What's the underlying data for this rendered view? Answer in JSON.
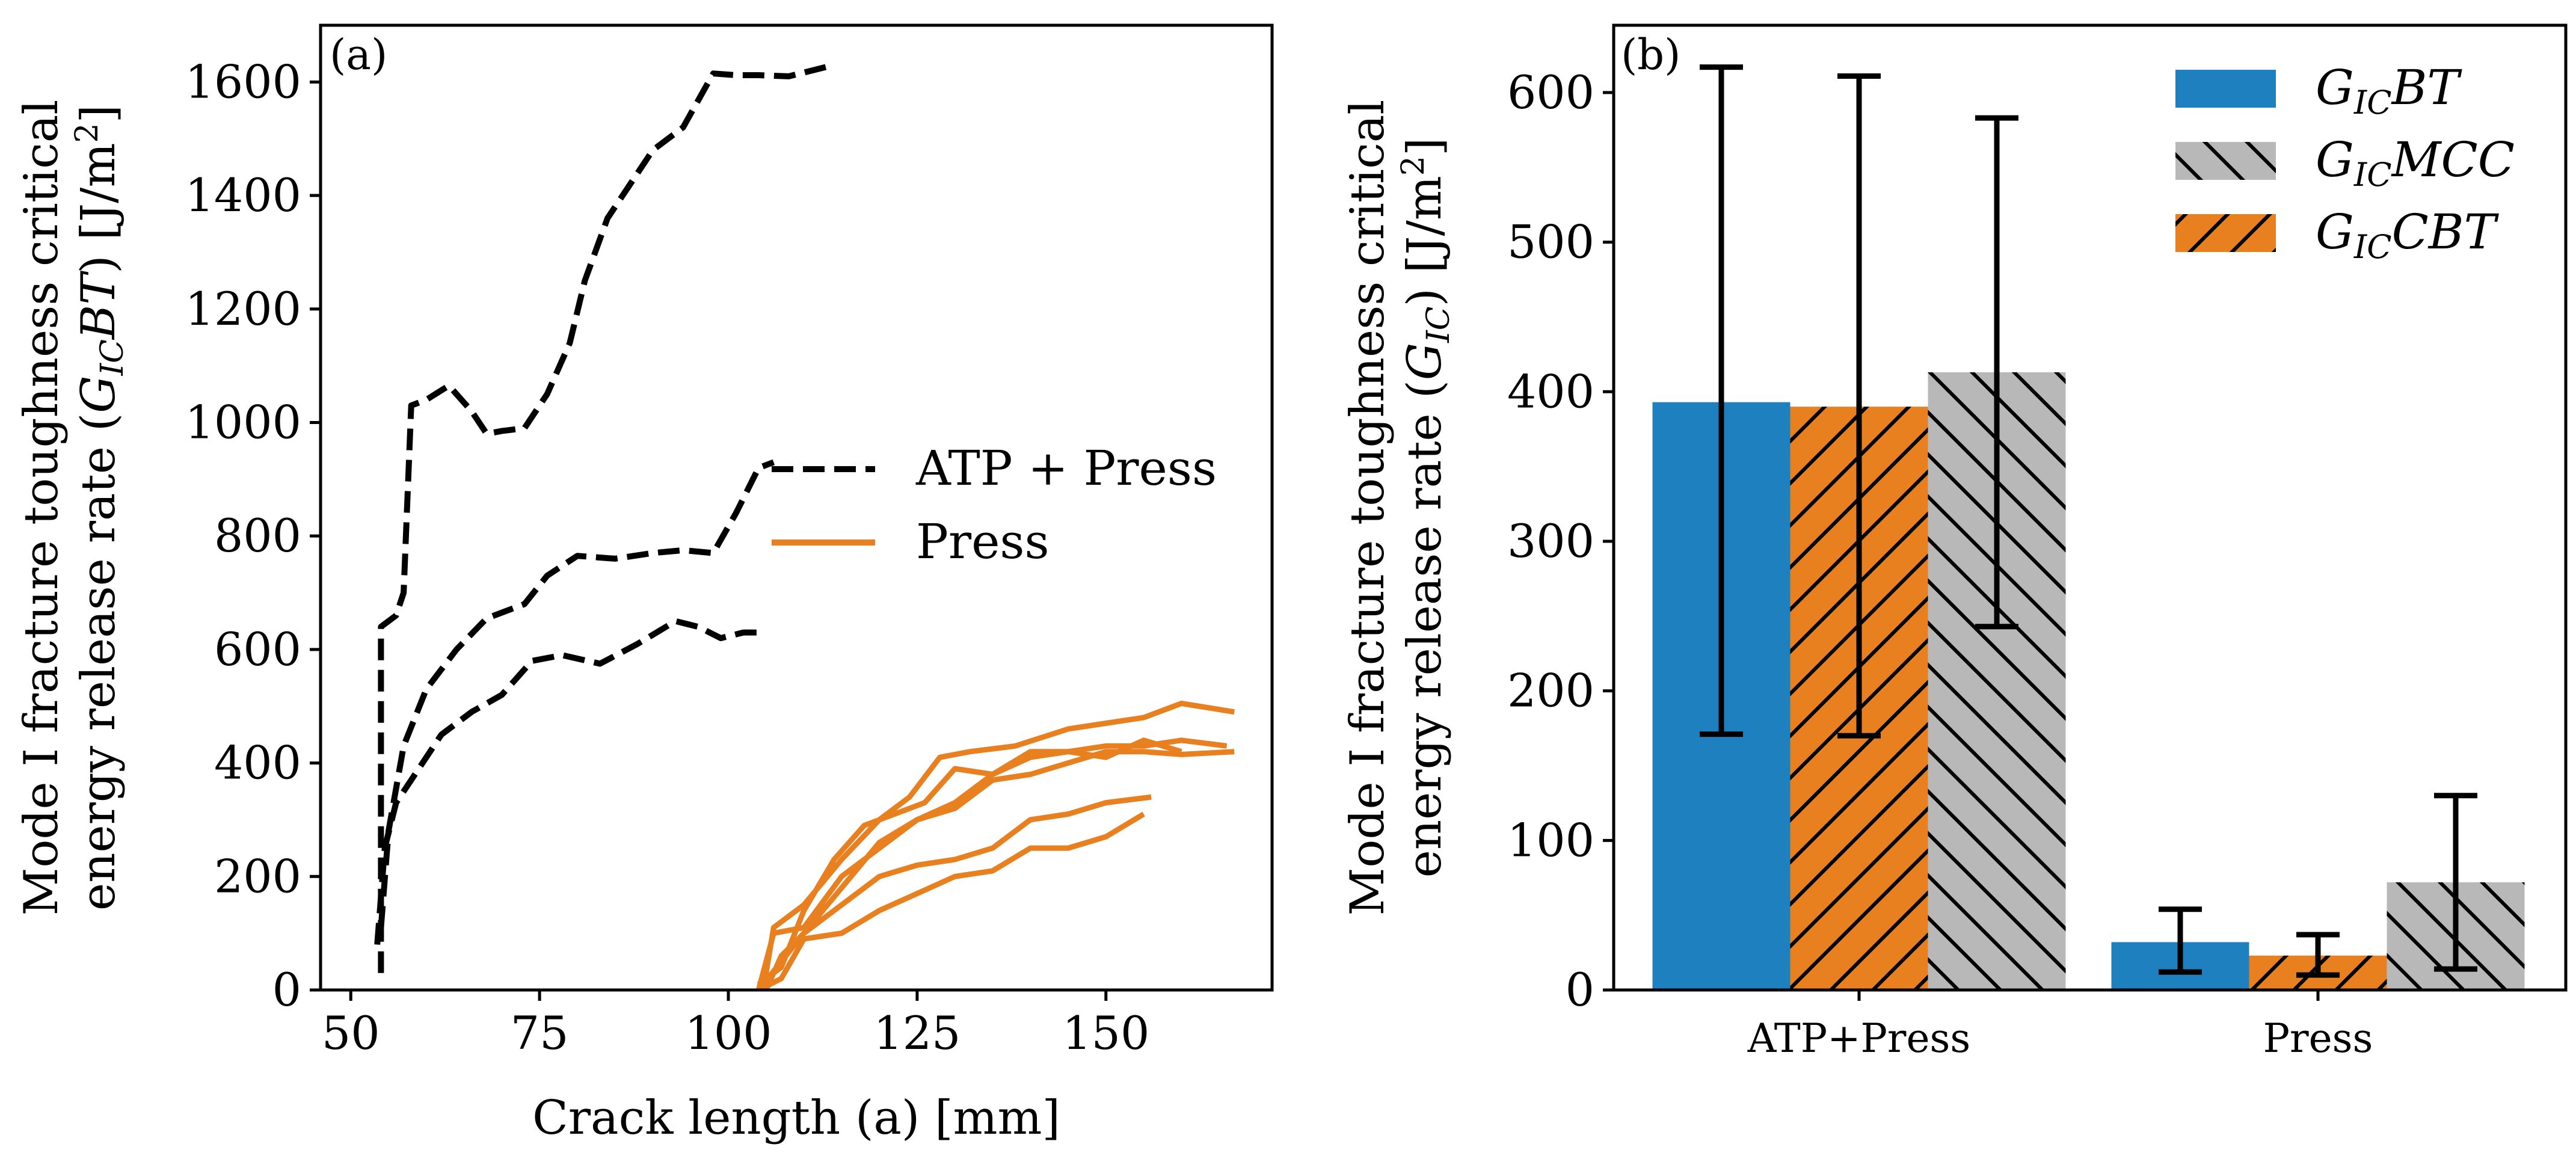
{
  "chart_data": [
    {
      "type": "line",
      "panel_label": "(a)",
      "xlabel": "Crack length (a) [mm]",
      "ylabel_line1": "Mode I fracture toughness critical",
      "ylabel_line2_prefix": "energy release rate (",
      "ylabel_symbol": "G",
      "ylabel_sub": "IC",
      "ylabel_symbol_tail": "BT",
      "ylabel_unit_prefix": ") [J/m",
      "ylabel_unit_sup": "2",
      "ylabel_unit_suffix": "]",
      "xlim": [
        46,
        172
      ],
      "ylim": [
        0,
        1700
      ],
      "xticks": [
        50,
        75,
        100,
        125,
        150
      ],
      "yticks": [
        0,
        200,
        400,
        600,
        800,
        1000,
        1200,
        1400,
        1600
      ],
      "legend_position": "center-right",
      "legend": [
        {
          "label": "ATP + Press",
          "color": "#000000",
          "dash": true
        },
        {
          "label": "Press",
          "color": "#E8801F",
          "dash": false
        }
      ],
      "series": [
        {
          "name": "ATP + Press",
          "color": "#000000",
          "dash": true,
          "points": [
            [
              54,
              30
            ],
            [
              54,
              640
            ],
            [
              56,
              660
            ],
            [
              57,
              700
            ],
            [
              58,
              1030
            ],
            [
              60,
              1040
            ],
            [
              63,
              1065
            ],
            [
              66,
              1020
            ],
            [
              68,
              980
            ],
            [
              70,
              985
            ],
            [
              73,
              990
            ],
            [
              76,
              1050
            ],
            [
              79,
              1140
            ],
            [
              81,
              1250
            ],
            [
              84,
              1360
            ],
            [
              87,
              1420
            ],
            [
              90,
              1480
            ],
            [
              94,
              1520
            ],
            [
              98,
              1615
            ],
            [
              101,
              1612
            ],
            [
              104,
              1612
            ],
            [
              108,
              1610
            ],
            [
              111,
              1620
            ],
            [
              114,
              1630
            ]
          ]
        },
        {
          "name": "ATP + Press",
          "color": "#000000",
          "dash": true,
          "points": [
            [
              54,
              110
            ],
            [
              55,
              280
            ],
            [
              57,
              430
            ],
            [
              60,
              530
            ],
            [
              64,
              600
            ],
            [
              68,
              655
            ],
            [
              70,
              665
            ],
            [
              73,
              680
            ],
            [
              76,
              730
            ],
            [
              80,
              765
            ],
            [
              85,
              760
            ],
            [
              90,
              770
            ],
            [
              94,
              775
            ],
            [
              98,
              770
            ],
            [
              101,
              840
            ],
            [
              104,
              920
            ],
            [
              106,
              930
            ]
          ]
        },
        {
          "name": "ATP + Press",
          "color": "#000000",
          "dash": true,
          "points": [
            [
              53.5,
              80
            ],
            [
              54.5,
              250
            ],
            [
              56,
              330
            ],
            [
              58,
              370
            ],
            [
              62,
              450
            ],
            [
              66,
              490
            ],
            [
              70,
              520
            ],
            [
              74,
              580
            ],
            [
              78,
              590
            ],
            [
              83,
              575
            ],
            [
              88,
              610
            ],
            [
              93,
              650
            ],
            [
              96,
              640
            ],
            [
              99,
              620
            ],
            [
              102,
              630
            ],
            [
              105,
              630
            ]
          ]
        },
        {
          "name": "Press",
          "color": "#E8801F",
          "dash": false,
          "points": [
            [
              104,
              0
            ],
            [
              105,
              30
            ],
            [
              106,
              110
            ],
            [
              110,
              150
            ],
            [
              115,
              230
            ],
            [
              120,
              300
            ],
            [
              124,
              340
            ],
            [
              128,
              410
            ],
            [
              132,
              420
            ],
            [
              138,
              430
            ],
            [
              145,
              460
            ],
            [
              150,
              470
            ],
            [
              155,
              480
            ],
            [
              160,
              505
            ],
            [
              167,
              490
            ]
          ]
        },
        {
          "name": "Press",
          "color": "#E8801F",
          "dash": false,
          "points": [
            [
              104,
              0
            ],
            [
              106,
              100
            ],
            [
              110,
              110
            ],
            [
              115,
              200
            ],
            [
              120,
              250
            ],
            [
              125,
              300
            ],
            [
              130,
              330
            ],
            [
              135,
              380
            ],
            [
              140,
              410
            ],
            [
              145,
              420
            ],
            [
              150,
              430
            ],
            [
              155,
              430
            ],
            [
              160,
              440
            ],
            [
              166,
              430
            ]
          ]
        },
        {
          "name": "Press",
          "color": "#E8801F",
          "dash": false,
          "points": [
            [
              105,
              0
            ],
            [
              107,
              60
            ],
            [
              110,
              100
            ],
            [
              115,
              180
            ],
            [
              120,
              260
            ],
            [
              125,
              300
            ],
            [
              130,
              320
            ],
            [
              135,
              370
            ],
            [
              140,
              380
            ],
            [
              145,
              400
            ],
            [
              150,
              420
            ],
            [
              155,
              420
            ],
            [
              160,
              415
            ],
            [
              167,
              420
            ]
          ]
        },
        {
          "name": "Press",
          "color": "#E8801F",
          "dash": false,
          "points": [
            [
              104,
              10
            ],
            [
              107,
              40
            ],
            [
              110,
              140
            ],
            [
              114,
              230
            ],
            [
              118,
              290
            ],
            [
              122,
              310
            ],
            [
              126,
              330
            ],
            [
              130,
              390
            ],
            [
              135,
              380
            ],
            [
              140,
              420
            ],
            [
              145,
              420
            ],
            [
              150,
              410
            ],
            [
              155,
              440
            ],
            [
              160,
              420
            ]
          ]
        },
        {
          "name": "Press",
          "color": "#E8801F",
          "dash": false,
          "points": [
            [
              104,
              0
            ],
            [
              107,
              20
            ],
            [
              110,
              90
            ],
            [
              115,
              100
            ],
            [
              120,
              140
            ],
            [
              125,
              170
            ],
            [
              130,
              200
            ],
            [
              135,
              210
            ],
            [
              140,
              250
            ],
            [
              145,
              250
            ],
            [
              150,
              270
            ],
            [
              155,
              310
            ]
          ]
        },
        {
          "name": "Press",
          "color": "#E8801F",
          "dash": false,
          "points": [
            [
              104,
              0
            ],
            [
              107,
              50
            ],
            [
              110,
              100
            ],
            [
              115,
              150
            ],
            [
              120,
              200
            ],
            [
              125,
              220
            ],
            [
              130,
              230
            ],
            [
              135,
              250
            ],
            [
              140,
              300
            ],
            [
              145,
              310
            ],
            [
              150,
              330
            ],
            [
              156,
              340
            ]
          ]
        }
      ]
    },
    {
      "type": "bar",
      "panel_label": "(b)",
      "xlabel": "",
      "ylabel_line1": "Mode I fracture toughness critical",
      "ylabel_line2_prefix": "energy release rate (",
      "ylabel_symbol": "G",
      "ylabel_sub": "IC",
      "ylabel_symbol_tail": "",
      "ylabel_unit_prefix": ") [J/m",
      "ylabel_unit_sup": "2",
      "ylabel_unit_suffix": "]",
      "ylim": [
        0,
        645
      ],
      "yticks": [
        0,
        100,
        200,
        300,
        400,
        500,
        600
      ],
      "categories": [
        "ATP+Press",
        "Press"
      ],
      "legend_position": "top-right",
      "series": [
        {
          "name": "BT",
          "legend_symbol": "G",
          "legend_sub": "IC",
          "legend_tail": "BT",
          "color": "#1F80C0",
          "hatch": "none",
          "values": [
            393,
            32
          ],
          "err_low": [
            171,
            12
          ],
          "err_high": [
            617,
            54
          ]
        },
        {
          "name": "CBT",
          "legend_symbol": "G",
          "legend_sub": "IC",
          "legend_tail": "CBT",
          "color": "#E8801F",
          "hatch": "forward",
          "values": [
            390,
            23
          ],
          "err_low": [
            170,
            10
          ],
          "err_high": [
            611,
            37
          ]
        },
        {
          "name": "MCC",
          "legend_symbol": "G",
          "legend_sub": "IC",
          "legend_tail": "MCC",
          "color": "#B8B8B8",
          "hatch": "back",
          "values": [
            413,
            72
          ],
          "err_low": [
            243,
            14
          ],
          "err_high": [
            583,
            130
          ]
        }
      ],
      "legend_order": [
        0,
        2,
        1
      ]
    }
  ]
}
